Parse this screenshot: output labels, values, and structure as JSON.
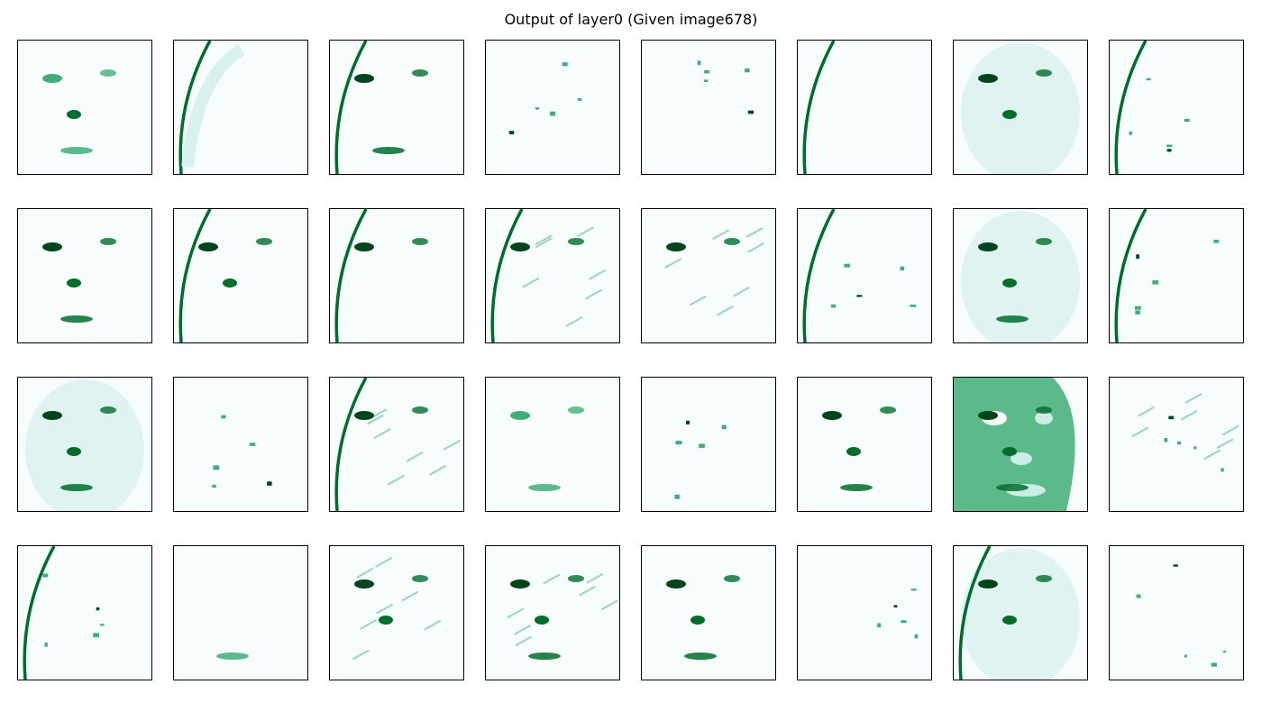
{
  "figure": {
    "title": "Output of layer0 (Given image678)"
  },
  "colormap": {
    "name": "BuGn",
    "background": "#f7fcfd",
    "light": "#ccece6",
    "mid": "#41ae76",
    "dark": "#006d2c",
    "darkest": "#00441b"
  },
  "grid": {
    "rows": 4,
    "cols": 8,
    "feature_maps": [
      {
        "index": 0,
        "intensity": "sparse",
        "features": [
          "eyes",
          "nose",
          "mouth"
        ]
      },
      {
        "index": 1,
        "intensity": "sparse",
        "features": [
          "left-edge",
          "hair"
        ]
      },
      {
        "index": 2,
        "intensity": "medium",
        "features": [
          "left-edge",
          "eyes",
          "mouth"
        ]
      },
      {
        "index": 3,
        "intensity": "sparse",
        "features": [
          "dots"
        ]
      },
      {
        "index": 4,
        "intensity": "sparse",
        "features": [
          "dots"
        ]
      },
      {
        "index": 5,
        "intensity": "sparse",
        "features": [
          "left-edge"
        ]
      },
      {
        "index": 6,
        "intensity": "face",
        "features": [
          "face",
          "eyes",
          "nose"
        ]
      },
      {
        "index": 7,
        "intensity": "sparse",
        "features": [
          "left-edge",
          "dots"
        ]
      },
      {
        "index": 8,
        "intensity": "medium",
        "features": [
          "eyes",
          "nose",
          "mouth"
        ]
      },
      {
        "index": 9,
        "intensity": "medium",
        "features": [
          "left-edge",
          "eyes",
          "nose"
        ]
      },
      {
        "index": 10,
        "intensity": "medium",
        "features": [
          "left-edge",
          "eyes"
        ]
      },
      {
        "index": 11,
        "intensity": "medium",
        "features": [
          "left-edge",
          "eyes",
          "streaks"
        ]
      },
      {
        "index": 12,
        "intensity": "medium",
        "features": [
          "eyes",
          "streaks"
        ]
      },
      {
        "index": 13,
        "intensity": "sparse",
        "features": [
          "left-edge",
          "dots"
        ]
      },
      {
        "index": 14,
        "intensity": "face",
        "features": [
          "face",
          "eyes",
          "nose",
          "mouth"
        ]
      },
      {
        "index": 15,
        "intensity": "sparse",
        "features": [
          "left-edge",
          "dots"
        ]
      },
      {
        "index": 16,
        "intensity": "face",
        "features": [
          "face",
          "eyes",
          "nose",
          "mouth"
        ]
      },
      {
        "index": 17,
        "intensity": "sparse",
        "features": [
          "dots"
        ]
      },
      {
        "index": 18,
        "intensity": "medium",
        "features": [
          "left-edge",
          "eyes",
          "streaks"
        ]
      },
      {
        "index": 19,
        "intensity": "sparse",
        "features": [
          "eyes",
          "mouth"
        ]
      },
      {
        "index": 20,
        "intensity": "sparse",
        "features": [
          "dots"
        ]
      },
      {
        "index": 21,
        "intensity": "medium",
        "features": [
          "eyes",
          "nose",
          "mouth"
        ]
      },
      {
        "index": 22,
        "intensity": "dense",
        "features": [
          "face",
          "eyes",
          "nose",
          "mouth"
        ]
      },
      {
        "index": 23,
        "intensity": "sparse",
        "features": [
          "streaks",
          "dots"
        ]
      },
      {
        "index": 24,
        "intensity": "sparse",
        "features": [
          "left-edge",
          "dots"
        ]
      },
      {
        "index": 25,
        "intensity": "sparse",
        "features": [
          "mouth"
        ]
      },
      {
        "index": 26,
        "intensity": "medium",
        "features": [
          "eyes",
          "nose",
          "streaks"
        ]
      },
      {
        "index": 27,
        "intensity": "medium",
        "features": [
          "eyes",
          "nose",
          "mouth",
          "streaks"
        ]
      },
      {
        "index": 28,
        "intensity": "medium",
        "features": [
          "eyes",
          "nose",
          "mouth"
        ]
      },
      {
        "index": 29,
        "intensity": "sparse",
        "features": [
          "dots"
        ]
      },
      {
        "index": 30,
        "intensity": "face",
        "features": [
          "face",
          "left-edge",
          "eyes",
          "nose"
        ]
      },
      {
        "index": 31,
        "intensity": "sparse",
        "features": [
          "dots"
        ]
      }
    ]
  }
}
